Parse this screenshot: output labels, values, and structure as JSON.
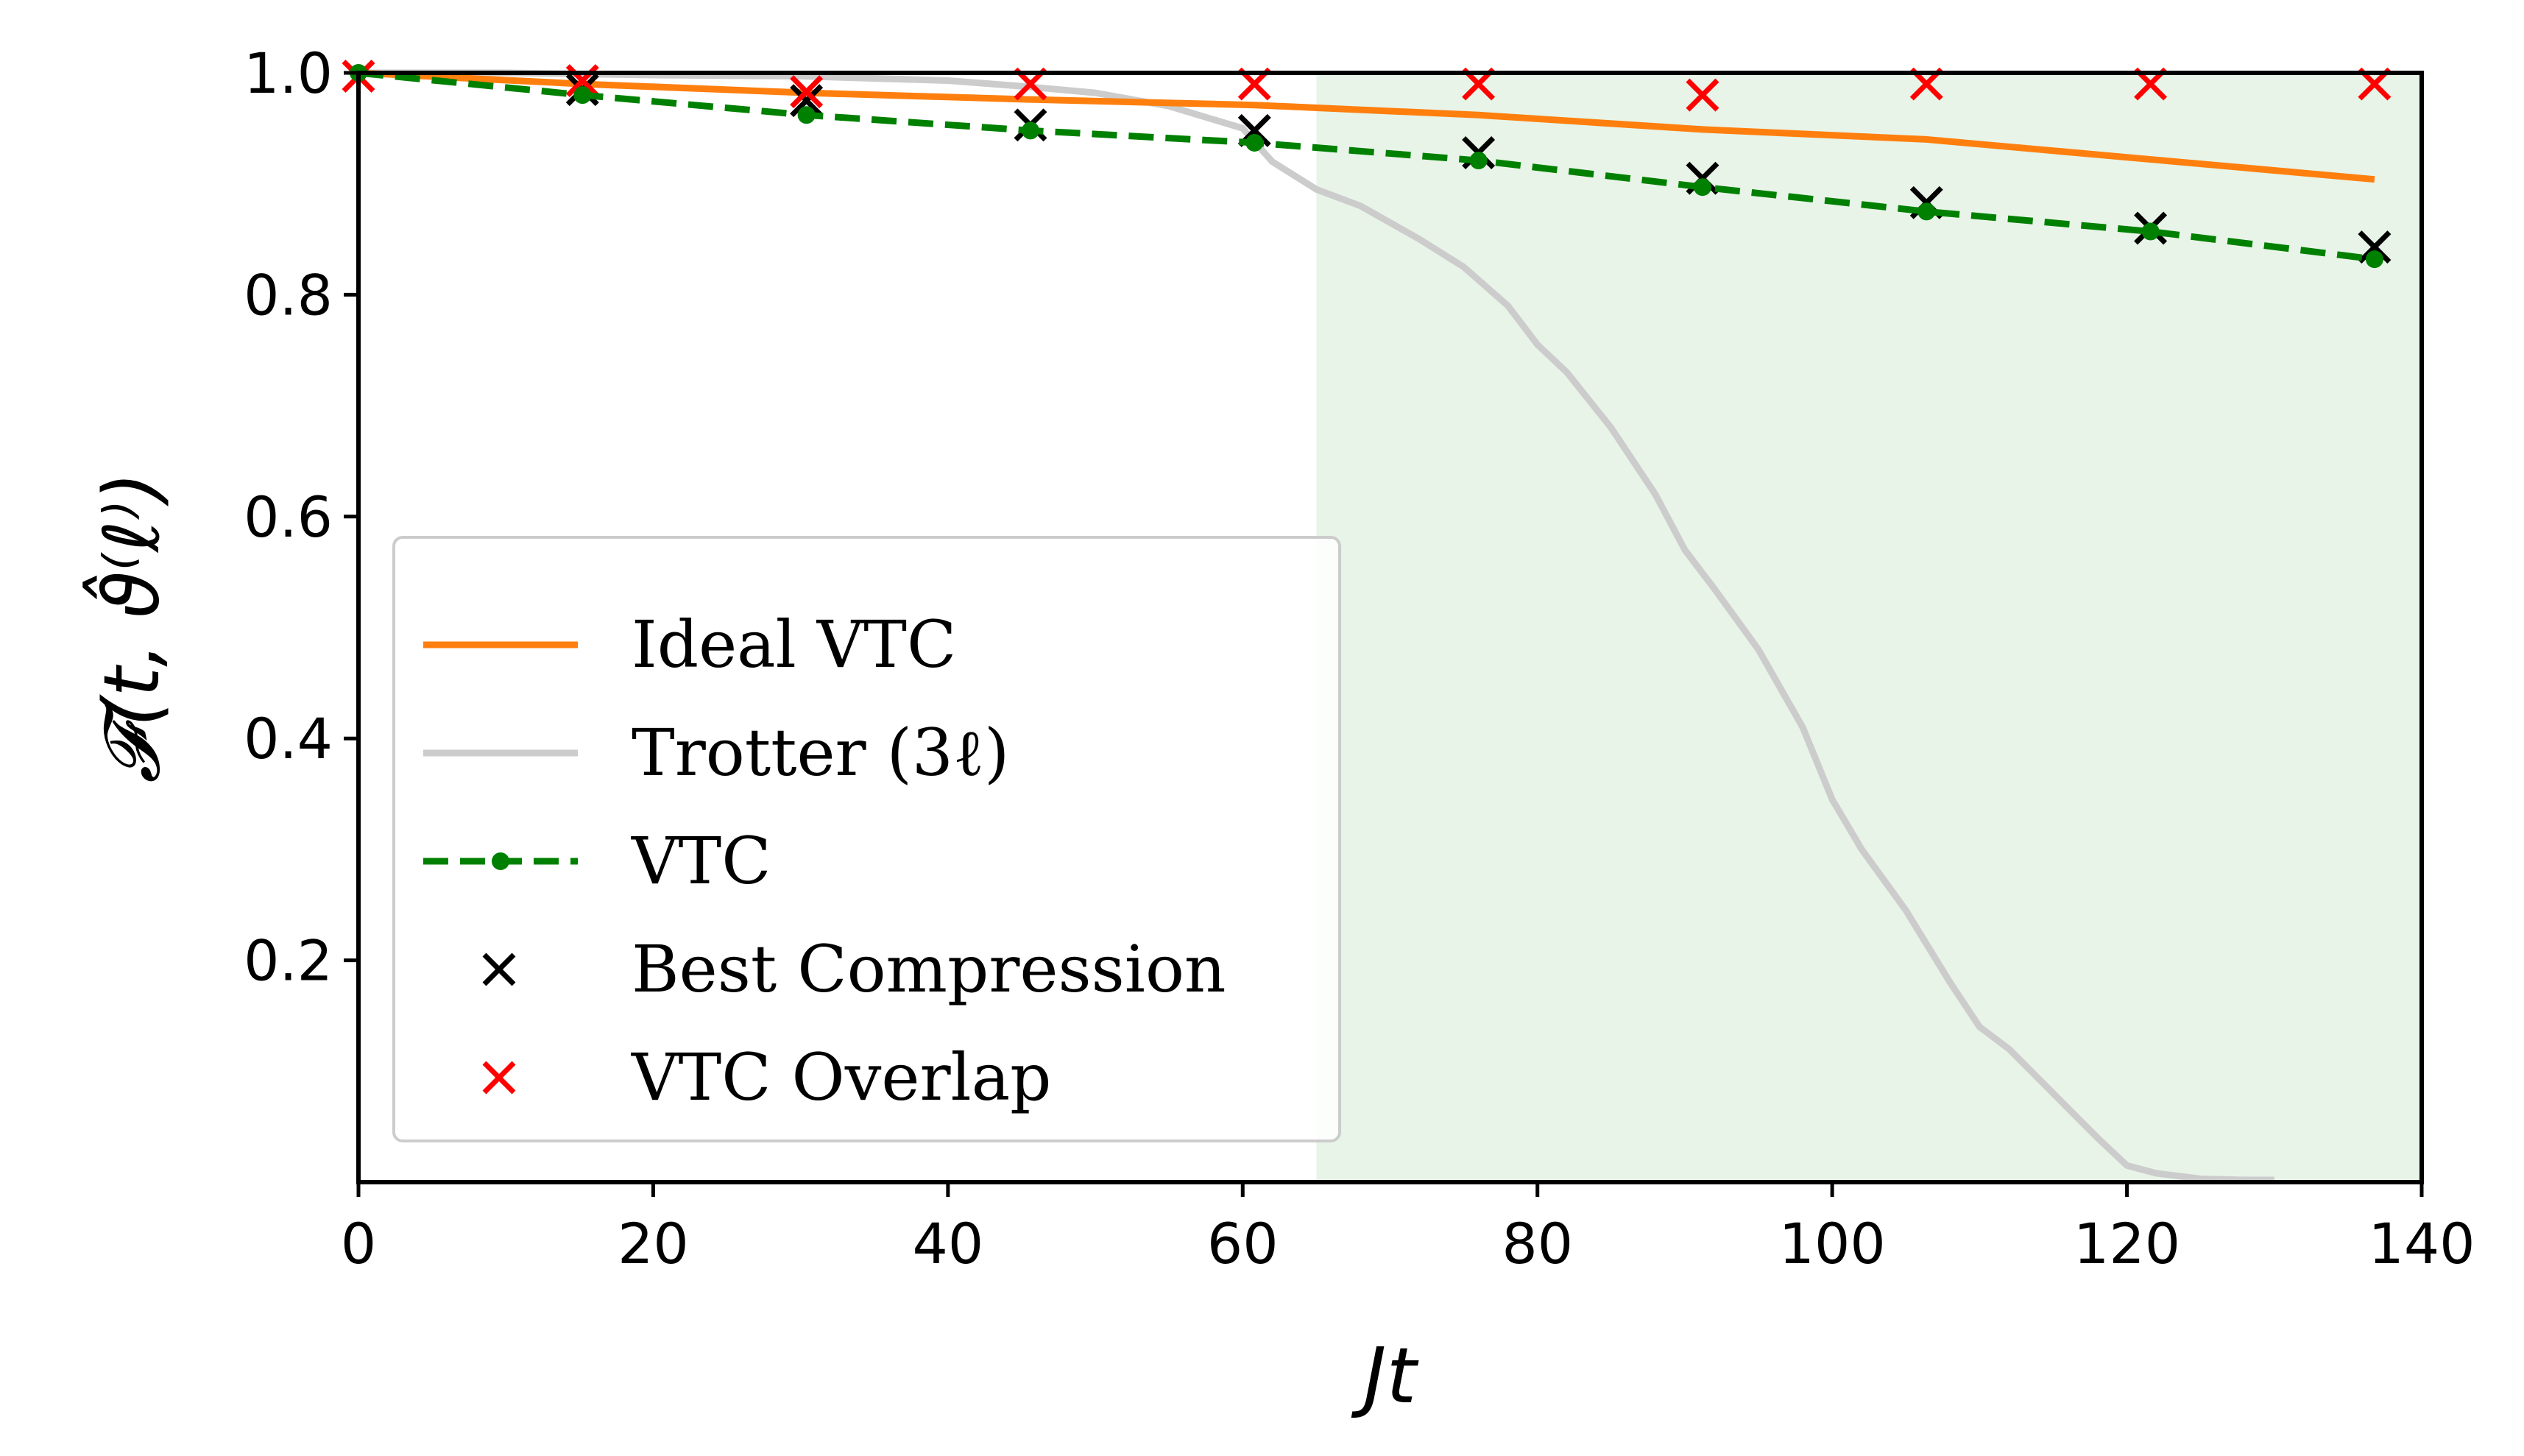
{
  "chart_data": {
    "type": "line",
    "title": "",
    "xlabel": "Jt",
    "ylabel": "𝓕(t, ϑ̂⁽ℓ⁾)",
    "xlim": [
      0,
      140
    ],
    "ylim": [
      0.0,
      1.0
    ],
    "xticks": [
      0,
      20,
      40,
      60,
      80,
      100,
      120,
      140
    ],
    "xtick_labels": [
      "0",
      "20",
      "40",
      "60",
      "80",
      "100",
      "120",
      "140"
    ],
    "yticks": [
      0.2,
      0.4,
      0.6,
      0.8,
      1.0
    ],
    "ytick_labels": [
      "0.2",
      "0.4",
      "0.6",
      "0.8",
      "1.0"
    ],
    "grid": false,
    "shaded_region": {
      "x_from": 65,
      "x_to": 140,
      "color": "#e8f4e8"
    },
    "legend_position": "lower-left",
    "series": [
      {
        "name": "Ideal VTC",
        "style": "line",
        "color": "#ff7f0e",
        "x": [
          0,
          15.2,
          30.4,
          45.6,
          60.8,
          76,
          91.2,
          106.4,
          121.6,
          136.8
        ],
        "values": [
          1.0,
          0.99,
          0.982,
          0.976,
          0.971,
          0.962,
          0.949,
          0.94,
          0.922,
          0.904
        ]
      },
      {
        "name": "Trotter (3ℓ)",
        "style": "line",
        "color": "#cccccc",
        "x": [
          0,
          10,
          20,
          30,
          40,
          45,
          50,
          55,
          60,
          62,
          65,
          68,
          70,
          72,
          75,
          78,
          80,
          82,
          85,
          88,
          90,
          92,
          95,
          98,
          100,
          102,
          105,
          108,
          110,
          112,
          115,
          118,
          120,
          122,
          125,
          128,
          130
        ],
        "values": [
          1.0,
          1.0,
          0.998,
          0.997,
          0.993,
          0.988,
          0.982,
          0.97,
          0.95,
          0.92,
          0.895,
          0.88,
          0.865,
          0.85,
          0.825,
          0.79,
          0.755,
          0.73,
          0.68,
          0.62,
          0.57,
          0.535,
          0.48,
          0.41,
          0.345,
          0.3,
          0.245,
          0.18,
          0.14,
          0.12,
          0.08,
          0.04,
          0.015,
          0.008,
          0.003,
          0.002,
          0.002
        ]
      },
      {
        "name": "VTC",
        "style": "dashed-marker",
        "color": "#008000",
        "x": [
          0,
          15.2,
          30.4,
          45.6,
          60.8,
          76,
          91.2,
          106.4,
          121.6,
          136.8
        ],
        "values": [
          1.0,
          0.98,
          0.962,
          0.948,
          0.937,
          0.921,
          0.897,
          0.875,
          0.857,
          0.832
        ]
      },
      {
        "name": "Best Compression",
        "style": "x-marker",
        "color": "#000000",
        "x": [
          15.2,
          30.4,
          45.6,
          60.8,
          76,
          91.2,
          106.4,
          121.6,
          136.8
        ],
        "values": [
          0.985,
          0.975,
          0.953,
          0.948,
          0.928,
          0.905,
          0.883,
          0.86,
          0.843
        ]
      },
      {
        "name": "VTC Overlap",
        "style": "x-marker",
        "color": "#ff0000",
        "x": [
          0,
          15.2,
          30.4,
          45.6,
          60.8,
          76,
          91.2,
          106.4,
          121.6,
          136.8
        ],
        "values": [
          0.997,
          0.993,
          0.983,
          0.99,
          0.99,
          0.99,
          0.98,
          0.99,
          0.99,
          0.99
        ]
      }
    ]
  }
}
